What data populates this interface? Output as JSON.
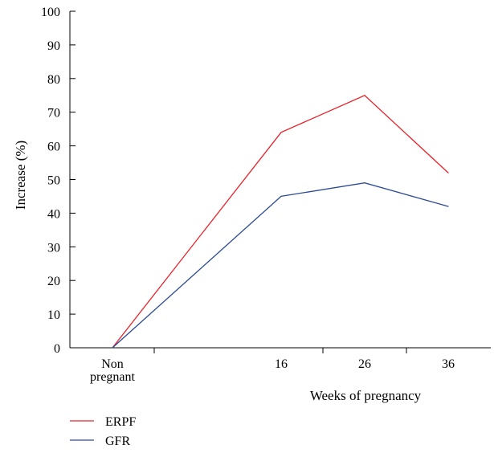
{
  "chart_data": {
    "type": "line",
    "categories": [
      [
        "Non",
        "pregnant"
      ],
      [
        "16"
      ],
      [
        "26"
      ],
      [
        "36"
      ]
    ],
    "series": [
      {
        "name": "ERPF",
        "values": [
          0,
          64,
          75,
          52
        ],
        "color": "#e8232a"
      },
      {
        "name": "GFR",
        "values": [
          0,
          45,
          49,
          42
        ],
        "color": "#2b4a96"
      }
    ],
    "xlabel": "Weeks of pregnancy",
    "ylabel": "Increase (%)",
    "ylim": [
      0,
      100
    ],
    "yticks": [
      0,
      10,
      20,
      30,
      40,
      50,
      60,
      70,
      80,
      90,
      100
    ],
    "grid": false,
    "legend": "bottom-left"
  }
}
